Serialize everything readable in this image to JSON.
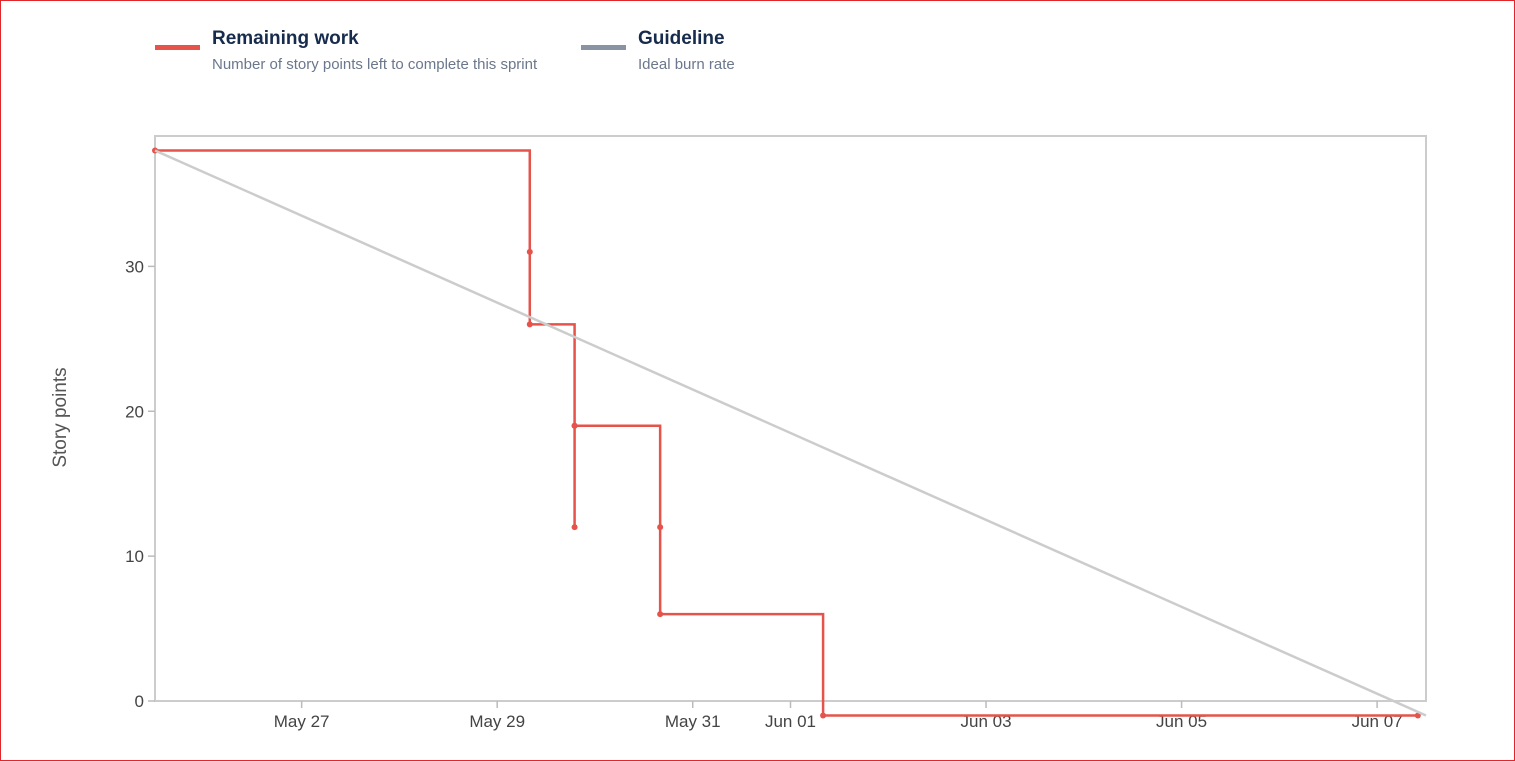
{
  "legend": [
    {
      "label": "Remaining work",
      "description": "Number of story points left to complete this sprint",
      "color": "#e5534b"
    },
    {
      "label": "Guideline",
      "description": "Ideal burn rate",
      "color": "#8993a4"
    }
  ],
  "chart_data": {
    "type": "line",
    "title": "",
    "xlabel": "",
    "ylabel": "Story points",
    "grid": false,
    "legend_position": "top-left",
    "xlim": [
      "2025-05-26T00:00",
      "2025-06-08T00:00"
    ],
    "ylim": [
      0,
      39
    ],
    "x_ticks": [
      "May 27",
      "May 29",
      "May 31",
      "Jun 01",
      "Jun 03",
      "Jun 05",
      "Jun 07"
    ],
    "y_ticks": [
      0,
      10,
      20,
      30
    ],
    "series": [
      {
        "name": "Remaining work",
        "color": "#e5534b",
        "step": true,
        "points": [
          {
            "x": "2025-05-26T00:00",
            "y": 38
          },
          {
            "x": "2025-05-29T20:00",
            "y": 31
          },
          {
            "x": "2025-05-29T20:00",
            "y": 26
          },
          {
            "x": "2025-05-30T07:00",
            "y": 19
          },
          {
            "x": "2025-05-30T07:00",
            "y": 12
          },
          {
            "x": "2025-05-30T07:00",
            "y": 19
          },
          {
            "x": "2025-05-31T04:00",
            "y": 12
          },
          {
            "x": "2025-05-31T04:00",
            "y": 6
          },
          {
            "x": "2025-06-01T20:00",
            "y": -1
          },
          {
            "x": "2025-06-07T22:00",
            "y": -1
          }
        ]
      },
      {
        "name": "Guideline",
        "color": "#cccccc",
        "step": false,
        "points": [
          {
            "x": "2025-05-26T00:00",
            "y": 38
          },
          {
            "x": "2025-06-08T00:00",
            "y": -1
          }
        ]
      }
    ]
  }
}
